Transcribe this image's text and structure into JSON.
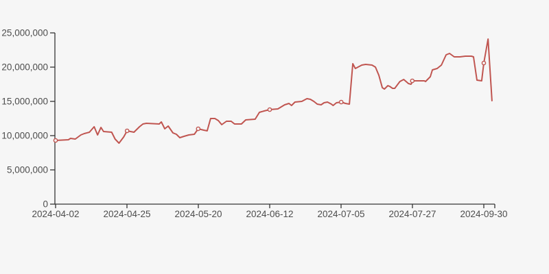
{
  "page": {
    "background_color": "#f6f6f6"
  },
  "chart_data": {
    "type": "line",
    "title": "",
    "xlabel": "",
    "ylabel": "",
    "legend": false,
    "grid": false,
    "line_color": "#c05550",
    "axis_color": "#333333",
    "tick_label_color": "#4d4d4d",
    "marker_fill": "#f6f6f6",
    "ylim": [
      0,
      25000000
    ],
    "y_ticks": {
      "values": [
        0,
        5000000,
        10000000,
        15000000,
        20000000,
        25000000
      ],
      "labels": [
        "0",
        "5,000,000",
        "10,000,000",
        "15,000,000",
        "20,000,000",
        "25,000,000"
      ]
    },
    "x_ticks": [
      "2024-04-02",
      "2024-04-25",
      "2024-05-20",
      "2024-06-12",
      "2024-07-05",
      "2024-07-27",
      "2024-09-30"
    ],
    "markers": [
      [
        0.0,
        9300000
      ],
      [
        0.167,
        10700000
      ],
      [
        0.333,
        11000000
      ],
      [
        0.5,
        13800000
      ],
      [
        0.667,
        14900000
      ],
      [
        0.833,
        18000000
      ],
      [
        1.0,
        20600000
      ]
    ],
    "points": [
      [
        0.0,
        9300000
      ],
      [
        0.03,
        9400000
      ],
      [
        0.035,
        9600000
      ],
      [
        0.046,
        9500000
      ],
      [
        0.059,
        10100000
      ],
      [
        0.067,
        10300000
      ],
      [
        0.079,
        10500000
      ],
      [
        0.09,
        11300000
      ],
      [
        0.098,
        10100000
      ],
      [
        0.106,
        11200000
      ],
      [
        0.112,
        10600000
      ],
      [
        0.131,
        10500000
      ],
      [
        0.139,
        9500000
      ],
      [
        0.148,
        8900000
      ],
      [
        0.159,
        9800000
      ],
      [
        0.167,
        10700000
      ],
      [
        0.183,
        10500000
      ],
      [
        0.196,
        11300000
      ],
      [
        0.204,
        11700000
      ],
      [
        0.212,
        11800000
      ],
      [
        0.242,
        11700000
      ],
      [
        0.247,
        12000000
      ],
      [
        0.255,
        11000000
      ],
      [
        0.263,
        11400000
      ],
      [
        0.274,
        10400000
      ],
      [
        0.282,
        10200000
      ],
      [
        0.29,
        9700000
      ],
      [
        0.3,
        9900000
      ],
      [
        0.311,
        10100000
      ],
      [
        0.324,
        10200000
      ],
      [
        0.333,
        11000000
      ],
      [
        0.346,
        10800000
      ],
      [
        0.354,
        10700000
      ],
      [
        0.362,
        12500000
      ],
      [
        0.372,
        12500000
      ],
      [
        0.38,
        12200000
      ],
      [
        0.388,
        11600000
      ],
      [
        0.399,
        12100000
      ],
      [
        0.41,
        12100000
      ],
      [
        0.418,
        11700000
      ],
      [
        0.434,
        11700000
      ],
      [
        0.444,
        12300000
      ],
      [
        0.466,
        12400000
      ],
      [
        0.476,
        13400000
      ],
      [
        0.487,
        13600000
      ],
      [
        0.5,
        13800000
      ],
      [
        0.519,
        13900000
      ],
      [
        0.535,
        14500000
      ],
      [
        0.545,
        14700000
      ],
      [
        0.551,
        14400000
      ],
      [
        0.559,
        14900000
      ],
      [
        0.575,
        15000000
      ],
      [
        0.587,
        15400000
      ],
      [
        0.595,
        15300000
      ],
      [
        0.603,
        15000000
      ],
      [
        0.611,
        14600000
      ],
      [
        0.62,
        14500000
      ],
      [
        0.627,
        14800000
      ],
      [
        0.635,
        14900000
      ],
      [
        0.644,
        14600000
      ],
      [
        0.648,
        14400000
      ],
      [
        0.656,
        14800000
      ],
      [
        0.667,
        14900000
      ],
      [
        0.677,
        14700000
      ],
      [
        0.686,
        14600000
      ],
      [
        0.694,
        20500000
      ],
      [
        0.7,
        19800000
      ],
      [
        0.715,
        20300000
      ],
      [
        0.724,
        20400000
      ],
      [
        0.739,
        20300000
      ],
      [
        0.747,
        20000000
      ],
      [
        0.755,
        18800000
      ],
      [
        0.763,
        17000000
      ],
      [
        0.768,
        16800000
      ],
      [
        0.776,
        17300000
      ],
      [
        0.78,
        17200000
      ],
      [
        0.787,
        16900000
      ],
      [
        0.792,
        16900000
      ],
      [
        0.804,
        17900000
      ],
      [
        0.813,
        18200000
      ],
      [
        0.824,
        17600000
      ],
      [
        0.83,
        17500000
      ],
      [
        0.835,
        18000000
      ],
      [
        0.848,
        18000000
      ],
      [
        0.861,
        18000000
      ],
      [
        0.864,
        17900000
      ],
      [
        0.875,
        18600000
      ],
      [
        0.88,
        19600000
      ],
      [
        0.891,
        19800000
      ],
      [
        0.901,
        20300000
      ],
      [
        0.912,
        21800000
      ],
      [
        0.92,
        22000000
      ],
      [
        0.931,
        21500000
      ],
      [
        0.944,
        21500000
      ],
      [
        0.957,
        21600000
      ],
      [
        0.971,
        21600000
      ],
      [
        0.976,
        21500000
      ],
      [
        0.984,
        18100000
      ],
      [
        0.995,
        18000000
      ],
      [
        1.0,
        20600000
      ],
      [
        1.01,
        24100000
      ],
      [
        1.019,
        15100000
      ]
    ]
  }
}
